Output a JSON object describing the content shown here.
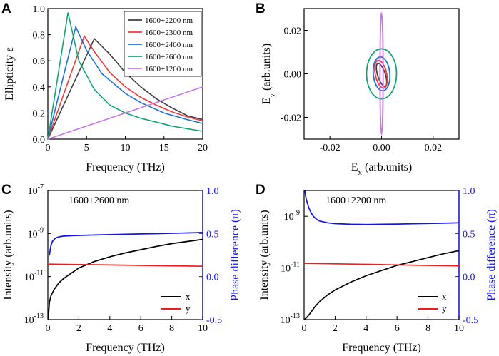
{
  "colors": {
    "c2200": "#404040",
    "c2300": "#ee3b3b",
    "c2400": "#1f6fd8",
    "c2600": "#14a37a",
    "c1200": "#c878e6",
    "x_line": "#000000",
    "y_line": "#ee1c1c",
    "phase": "#1414e6",
    "axis": "#000000"
  },
  "panels": {
    "A": {
      "label": "A"
    },
    "B": {
      "label": "B"
    },
    "C": {
      "label": "C",
      "annotation": "1600+2600 nm"
    },
    "D": {
      "label": "D",
      "annotation": "1600+2200 nm"
    }
  },
  "chart_data": [
    {
      "id": "A",
      "type": "line",
      "title": "",
      "xlabel": "Frequency (THz)",
      "ylabel": "Ellipticity ε",
      "xlim": [
        0,
        20
      ],
      "ylim": [
        0,
        1.0
      ],
      "xticks": [
        0,
        5,
        10,
        15,
        20
      ],
      "xtick_labels": [
        "0",
        "5",
        "10",
        "15",
        "20"
      ],
      "yticks": [
        0,
        0.2,
        0.4,
        0.6,
        0.8,
        1.0
      ],
      "ytick_labels": [
        "0.0",
        "0.2",
        "0.4",
        "0.6",
        "0.8",
        "1.0"
      ],
      "legend_position": "top-right",
      "series": [
        {
          "name": "1600+2200 nm",
          "color_key": "c2200",
          "x": [
            0,
            6.0,
            8,
            10,
            12,
            14,
            16,
            18,
            20
          ],
          "y": [
            0,
            0.77,
            0.65,
            0.51,
            0.4,
            0.31,
            0.24,
            0.18,
            0.15
          ]
        },
        {
          "name": "1600+2300 nm",
          "color_key": "c2300",
          "x": [
            0,
            4.7,
            6,
            8,
            10,
            12,
            14,
            16,
            18,
            20
          ],
          "y": [
            0,
            0.79,
            0.67,
            0.51,
            0.4,
            0.32,
            0.26,
            0.21,
            0.17,
            0.14
          ]
        },
        {
          "name": "1600+2400 nm",
          "color_key": "c2400",
          "x": [
            0,
            3.6,
            5,
            7,
            10,
            12,
            15,
            18,
            20
          ],
          "y": [
            0,
            0.86,
            0.68,
            0.5,
            0.35,
            0.28,
            0.2,
            0.15,
            0.12
          ]
        },
        {
          "name": "1600+2600 nm",
          "color_key": "c2600",
          "x": [
            0,
            2.6,
            4,
            6,
            8,
            10,
            12,
            14,
            16,
            18,
            20
          ],
          "y": [
            0,
            0.97,
            0.6,
            0.38,
            0.26,
            0.2,
            0.16,
            0.13,
            0.1,
            0.08,
            0.06
          ]
        },
        {
          "name": "1600+1200 nm",
          "color_key": "c1200",
          "x": [
            0,
            20
          ],
          "y": [
            0,
            0.4
          ]
        }
      ]
    },
    {
      "id": "B",
      "type": "line",
      "title": "",
      "xlabel": "Ex (arb.units)",
      "ylabel": "Ey (arb.units)",
      "xlim": [
        -0.03,
        0.03
      ],
      "ylim": [
        -0.03,
        0.03
      ],
      "xticks": [
        -0.02,
        0.0,
        0.02
      ],
      "xtick_labels": [
        "-0.02",
        "0.00",
        "0.02"
      ],
      "yticks": [
        -0.02,
        0.0,
        0.02
      ],
      "ytick_labels": [
        "-0.02",
        "0.00",
        "0.02"
      ],
      "ellipses": [
        {
          "name": "1600+2200 nm",
          "color_key": "c2200",
          "rx": 0.0015,
          "ry": 0.0055,
          "rotate_deg": -18,
          "cx": 0.0,
          "cy": -0.0005
        },
        {
          "name": "1600+2300 nm",
          "color_key": "c2300",
          "rx": 0.0022,
          "ry": 0.0065,
          "rotate_deg": -12,
          "cx": -0.0002,
          "cy": -0.0002
        },
        {
          "name": "1600+2400 nm",
          "color_key": "c2400",
          "rx": 0.0032,
          "ry": 0.0078,
          "rotate_deg": -5,
          "cx": 0.0,
          "cy": 0.0
        },
        {
          "name": "1600+2600 nm",
          "color_key": "c2600",
          "rx": 0.0058,
          "ry": 0.0115,
          "rotate_deg": 0,
          "cx": 0.0,
          "cy": 0.0
        },
        {
          "name": "1600+1200 nm",
          "color_key": "c1200",
          "rx": 0.0006,
          "ry": 0.028,
          "rotate_deg": 0,
          "cx": 0.0,
          "cy": 0.0
        }
      ]
    },
    {
      "id": "C",
      "type": "line",
      "title": "",
      "xlabel": "Frequency (THz)",
      "ylabel": "Intensity (arb.units)",
      "ylabel_right": "Phase difference (π)",
      "xlim": [
        0,
        10
      ],
      "ylim_log": [
        -13,
        -7
      ],
      "ylim_right": [
        -0.5,
        1.0
      ],
      "xticks": [
        0,
        2,
        4,
        6,
        8,
        10
      ],
      "xtick_labels": [
        "0",
        "2",
        "4",
        "6",
        "8",
        "10"
      ],
      "yticks_log": [
        -13,
        -11,
        -9,
        -7
      ],
      "ytick_bases": [
        "10",
        "10",
        "10",
        "10"
      ],
      "ytick_exps": [
        "-13",
        "-11",
        "-9",
        "-7"
      ],
      "yticks_right": [
        -0.5,
        0.0,
        0.5,
        1.0
      ],
      "ytick_labels_right": [
        "-0.5",
        "0.0",
        "0.5",
        "1.0"
      ],
      "legend": [
        "x",
        "y"
      ],
      "legend_position": "bottom-right",
      "series": [
        {
          "name": "x",
          "axis": "left",
          "color_key": "x_line",
          "x": [
            0.02,
            0.1,
            0.2,
            0.4,
            0.7,
            1,
            1.5,
            2,
            3,
            4,
            5,
            6,
            7,
            8,
            9,
            10
          ],
          "log10y": [
            -13.0,
            -12.2,
            -11.9,
            -11.6,
            -11.3,
            -11.1,
            -10.85,
            -10.6,
            -10.3,
            -10.08,
            -9.9,
            -9.75,
            -9.6,
            -9.47,
            -9.37,
            -9.27
          ]
        },
        {
          "name": "y",
          "axis": "left",
          "color_key": "y_line",
          "x": [
            0,
            2,
            4,
            6,
            8,
            10
          ],
          "log10y": [
            -10.42,
            -10.44,
            -10.46,
            -10.48,
            -10.5,
            -10.52
          ]
        },
        {
          "name": "phase",
          "axis": "right",
          "color_key": "phase",
          "x": [
            0.1,
            0.15,
            0.2,
            0.3,
            0.45,
            0.6,
            0.8,
            1,
            1.5,
            2,
            3,
            4,
            5,
            6,
            7,
            8,
            9,
            10
          ],
          "y": [
            0.25,
            0.31,
            0.36,
            0.41,
            0.44,
            0.455,
            0.465,
            0.47,
            0.475,
            0.478,
            0.483,
            0.487,
            0.491,
            0.495,
            0.499,
            0.503,
            0.507,
            0.512
          ]
        }
      ]
    },
    {
      "id": "D",
      "type": "line",
      "title": "",
      "xlabel": "Frequency (THz)",
      "ylabel": "Intensity (arb.units)",
      "ylabel_right": "Phase difference (π)",
      "xlim": [
        0,
        10
      ],
      "ylim_log": [
        -13,
        -8
      ],
      "ylim_right": [
        -0.5,
        1.0
      ],
      "xticks": [
        0,
        2,
        4,
        6,
        8,
        10
      ],
      "xtick_labels": [
        "0",
        "2",
        "4",
        "6",
        "8",
        "10"
      ],
      "yticks_log": [
        -13,
        -11,
        -9
      ],
      "ytick_bases": [
        "10",
        "10",
        "10"
      ],
      "ytick_exps": [
        "-13",
        "-11",
        "-9"
      ],
      "yticks_right": [
        -0.5,
        0.0,
        0.5,
        1.0
      ],
      "ytick_labels_right": [
        "-0.5",
        "0.0",
        "0.5",
        "1.0"
      ],
      "legend": [
        "x",
        "y"
      ],
      "legend_position": "bottom-right",
      "series": [
        {
          "name": "x",
          "axis": "left",
          "color_key": "x_line",
          "x": [
            0.02,
            0.2,
            0.4,
            0.7,
            1,
            1.5,
            2,
            3,
            4,
            5,
            6,
            7,
            8,
            9,
            10
          ],
          "log10y": [
            -13.0,
            -12.9,
            -12.75,
            -12.5,
            -12.3,
            -12.05,
            -11.85,
            -11.55,
            -11.3,
            -11.1,
            -10.9,
            -10.75,
            -10.6,
            -10.45,
            -10.33
          ]
        },
        {
          "name": "y",
          "axis": "left",
          "color_key": "y_line",
          "x": [
            0,
            2,
            4,
            6,
            8,
            10
          ],
          "log10y": [
            -10.82,
            -10.84,
            -10.86,
            -10.88,
            -10.9,
            -10.92
          ]
        },
        {
          "name": "phase",
          "axis": "right",
          "color_key": "phase",
          "x": [
            0.05,
            0.1,
            0.2,
            0.3,
            0.45,
            0.6,
            0.8,
            1,
            1.5,
            2,
            3,
            4,
            5,
            6,
            7,
            8,
            9,
            10
          ],
          "y": [
            1.0,
            0.93,
            0.86,
            0.8,
            0.74,
            0.7,
            0.665,
            0.645,
            0.625,
            0.615,
            0.607,
            0.605,
            0.607,
            0.61,
            0.613,
            0.616,
            0.62,
            0.625
          ]
        }
      ]
    }
  ]
}
